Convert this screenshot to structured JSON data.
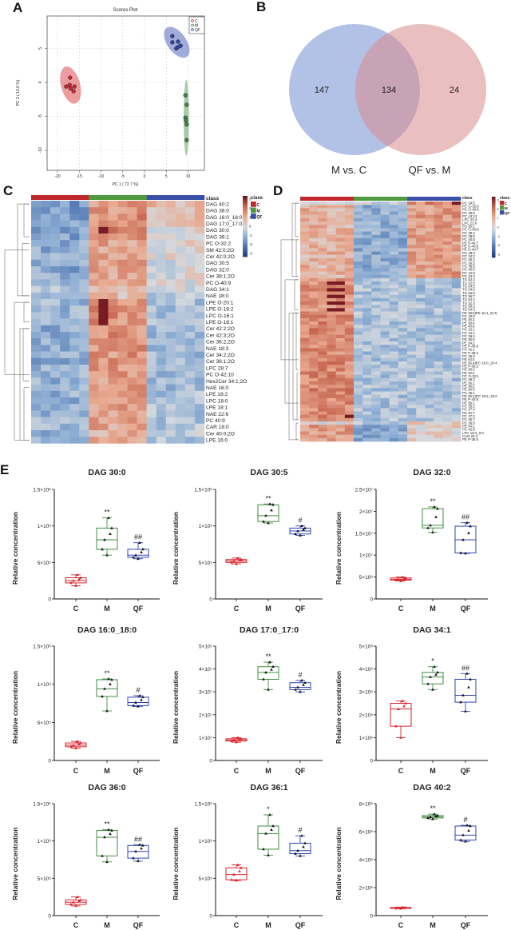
{
  "panel_letters": {
    "a": "A",
    "b": "B",
    "c": "C",
    "d": "D",
    "e": "E"
  },
  "colors": {
    "C": "#d8242c",
    "M": "#3f8f3f",
    "QF": "#2f45b5",
    "class_C": "#c1272d",
    "class_M": "#4e9a3c",
    "class_QF": "#3a4fa8"
  },
  "chart_data": [
    {
      "id": "A",
      "type": "scatter",
      "title": "Scores Plot",
      "xlabel": "PC 1 ( 72.7 %)",
      "ylabel": "PC 2 ( 10.6 %)",
      "xlim": [
        -22.5,
        13.5
      ],
      "ylim": [
        -13,
        9.7
      ],
      "xticks": [
        -20,
        -15,
        -10,
        -5,
        0,
        5,
        10
      ],
      "yticks": [
        5,
        0,
        -5,
        -10
      ],
      "grid": true,
      "legend": {
        "position": "top-right",
        "entries": [
          "C",
          "M",
          "QF"
        ]
      },
      "series": [
        {
          "name": "C",
          "points": [
            [
              -17.1,
              0.7
            ],
            [
              -18,
              -0.6
            ],
            [
              -17.2,
              -0.4
            ],
            [
              -16.1,
              -0.6
            ],
            [
              -17,
              -0.9
            ],
            [
              -16.3,
              -1.3
            ]
          ],
          "ellipse": {
            "cx": -17,
            "cy": -0.4,
            "rx": 2.2,
            "ry": 2.8,
            "angle": -15
          }
        },
        {
          "name": "M",
          "points": [
            [
              9.4,
              -1.9
            ],
            [
              9.7,
              -3.3
            ],
            [
              9.4,
              -5.2
            ],
            [
              9.5,
              -5.6
            ],
            [
              9.7,
              -6.2
            ],
            [
              9.7,
              -8.5
            ]
          ],
          "ellipse": {
            "cx": 9.6,
            "cy": -5.2,
            "rx": 0.6,
            "ry": 5.6,
            "angle": 0
          }
        },
        {
          "name": "QF",
          "points": [
            [
              6.4,
              6.8
            ],
            [
              6.4,
              5.9
            ],
            [
              7.7,
              6.0
            ],
            [
              8.3,
              5.4
            ],
            [
              7.3,
              5.0
            ],
            [
              7.7,
              5.2
            ]
          ],
          "ellipse": {
            "cx": 7.4,
            "cy": 5.9,
            "rx": 2.2,
            "ry": 2.6,
            "angle": -35
          }
        }
      ]
    },
    {
      "id": "B",
      "type": "venn",
      "sets": [
        "M vs. C",
        "QF vs. M"
      ],
      "only_left": 147,
      "intersection": 134,
      "only_right": 24
    },
    {
      "id": "C",
      "type": "heatmap",
      "class_label": "class",
      "groups": [
        "C",
        "M",
        "QF"
      ],
      "samples_per_group": 6,
      "scale": [
        -3,
        3
      ],
      "scale_ticks": [
        3,
        2,
        1,
        0,
        -1,
        -2,
        -3
      ],
      "rows": [
        "DAG 40:2",
        "DAG 36:0",
        "DAG 16:0_18:0",
        "DAG 17:0_17:0",
        "DAG 30:0",
        "DAG 36:1",
        "PC O-32:2",
        "SM 42:0;2O",
        "Cer 42:0;2O",
        "DAG 30:5",
        "DAG 32:0",
        "Cer 38:1;2O",
        "PC O-40:9",
        "DAG 34:1",
        "NAE 18:0",
        "LPE O-20:1",
        "LPE O-18:2",
        "LPC O-16:1",
        "LPE O-18:1",
        "Cer 42:2;2O",
        "Cer 42:3;2O",
        "Cer 36:2;2O",
        "NAE 18:3",
        "Cer 34:2;2O",
        "Cer 36:1;2O",
        "LPC 28:7",
        "PC O-42:10",
        "Hex2Cer 34:1;2O",
        "NAE 16:0",
        "LPE 18:2",
        "LPC 18:0",
        "LPE 18:1",
        "NAE 22:6",
        "PC 40:9",
        "CAR 18:0",
        "Cer 40:0;2O",
        "LPE 16:0"
      ],
      "row_group_levels": [
        [
          -1.3,
          1.3,
          0.6
        ],
        [
          -1.3,
          1.3,
          0.5
        ],
        [
          -1.3,
          1.4,
          0.5
        ],
        [
          -1.3,
          1.3,
          0.6
        ],
        [
          -1.2,
          1.6,
          0.2
        ],
        [
          -1.1,
          1.2,
          0.3
        ],
        [
          -1,
          1.1,
          0.2
        ],
        [
          -1,
          1,
          0.1
        ],
        [
          -0.9,
          1,
          0.1
        ],
        [
          -1,
          1.2,
          0
        ],
        [
          -1.1,
          1.1,
          0
        ],
        [
          -0.9,
          0.9,
          0
        ],
        [
          -0.8,
          0.9,
          -0.1
        ],
        [
          -0.6,
          0.6,
          0
        ],
        [
          -0.7,
          0.6,
          -0.4
        ],
        [
          -0.8,
          1.3,
          -0.6
        ],
        [
          -0.8,
          1.4,
          -0.6
        ],
        [
          -0.8,
          1.4,
          -0.6
        ],
        [
          -0.8,
          1.4,
          -0.6
        ],
        [
          -1,
          1.4,
          -0.7
        ],
        [
          -1,
          1.4,
          -0.7
        ],
        [
          -1,
          1.4,
          -0.7
        ],
        [
          -1,
          1.3,
          -0.7
        ],
        [
          -1,
          1.3,
          -0.7
        ],
        [
          -1,
          1.3,
          -0.7
        ],
        [
          -0.9,
          1.3,
          -0.7
        ],
        [
          -0.9,
          1.2,
          -0.7
        ],
        [
          -0.9,
          1.2,
          -0.7
        ],
        [
          -0.9,
          1.2,
          -0.7
        ],
        [
          -0.9,
          1.1,
          -0.6
        ],
        [
          -0.9,
          1.1,
          -0.6
        ],
        [
          -0.9,
          1.1,
          -0.6
        ],
        [
          -0.9,
          1.1,
          -0.6
        ],
        [
          -0.8,
          1,
          -0.5
        ],
        [
          -0.8,
          1,
          -0.5
        ],
        [
          -1.1,
          0.8,
          -0.3
        ],
        [
          -0.8,
          0.9,
          -0.6
        ]
      ]
    },
    {
      "id": "D",
      "type": "heatmap",
      "class_label": "class",
      "groups": [
        "C",
        "M",
        "QF"
      ],
      "samples_per_group": 6,
      "scale": [
        -3,
        3
      ],
      "scale_ticks": [
        3,
        2,
        1,
        0,
        -1,
        -2,
        -3
      ],
      "rows": [
        "PC 34:5",
        "PC O-32:6",
        "PC O-40:6",
        "PC 36:6",
        "PC 44:12",
        "LPC 20:4",
        "LPC 22:6",
        "PS 36:1",
        "PC O-40:8",
        "PC 38:4",
        "PC 38:6",
        "PC 40:8",
        "PE P-40:7",
        "PE O-40:5",
        "PE O-40:7",
        "PC 38:3",
        "PC 34:2",
        "PC 36:2",
        "PC 36:5",
        "PC 38:5",
        "PC 40:6",
        "PC 42:6",
        "PC 34:3",
        "TG 52:4",
        "TG 52:5",
        "TG 54:5",
        "TG 54:6",
        "TG 56:6",
        "TG 56:7",
        "TG 54:4",
        "TG 52:3",
        "TG 50:3",
        "TG 54:3",
        "PE 38:6|PE 16:1_22:6",
        "PC 40:5",
        "PE 36:2",
        "PE 38:4",
        "PE 40:6",
        "PC 32:1",
        "PC 34:1",
        "PC 36:4",
        "PE 38:5",
        "PE 34:2",
        "PE P-40:6",
        "PC 42:1",
        "PE P-38:2",
        "PC 36:3",
        "PE 40:5",
        "PE 36:4|PC 16:0_20:4",
        "PE P-36:2",
        "PE 38:3",
        "PE 40:4",
        "PC O-32:1",
        "PC 38:2",
        "PE 36:1",
        "PE 38:2",
        "PE 36:3",
        "PC 36:1",
        "PE 36:4|PC 18:2_18:2",
        "PE P-40:8",
        "PE 38:1",
        "PC 35:2",
        "PC 37:4",
        "PE 40:7",
        "PC 37:2",
        "PC 40:7",
        "PC 36:0",
        "PE 34:1",
        "PC 42:8",
        "LPC 18:2_0:0",
        "CAR 20:4",
        "PE P-38:5"
      ],
      "row_group_levels": "see script defaults: rows 0 [-0.3,-0.3,1.5]; 1-22 [0.8,-1,1.2]; 23-32 [1.3,-0.6,-0.6]; 33-65 [1.5,-0.6,-0.6]; 66 [0,-0.3,0.3]; 67-71 [1.2,-1,0.3]"
    },
    {
      "id": "E",
      "type": "box",
      "categories": [
        "C",
        "M",
        "QF"
      ],
      "ylabel": "Relative concentration",
      "summary_order": [
        "min",
        "q1",
        "median",
        "q3",
        "max"
      ],
      "panels": [
        {
          "title": "DAG 30:0",
          "ymax": 1500000,
          "ticks": [
            0,
            500000,
            1000000,
            1500000
          ],
          "tick_labels": [
            "0",
            "5×10⁵",
            "1×10⁶",
            "1.5×10⁶"
          ],
          "boxes": [
            [
              180000,
              220000,
              250000,
              290000,
              330000
            ],
            [
              600000,
              680000,
              810000,
              970000,
              1110000
            ],
            [
              550000,
              570000,
              600000,
              680000,
              770000
            ]
          ],
          "sig": [
            "",
            "**",
            "##"
          ]
        },
        {
          "title": "DAG 30:5",
          "ymax": 1500000,
          "ticks": [
            0,
            500000,
            1000000,
            1500000
          ],
          "tick_labels": [
            "0",
            "5×10⁵",
            "1×10⁶",
            "1.5×10⁶"
          ],
          "boxes": [
            [
              480000,
              500000,
              520000,
              540000,
              560000
            ],
            [
              1040000,
              1060000,
              1140000,
              1290000,
              1300000
            ],
            [
              870000,
              890000,
              930000,
              970000,
              1000000
            ]
          ],
          "sig": [
            "",
            "**",
            "#"
          ]
        },
        {
          "title": "DAG 32:0",
          "ymax": 25000000,
          "ticks": [
            0,
            5000000,
            10000000,
            15000000,
            20000000,
            25000000
          ],
          "tick_labels": [
            "0",
            "5×10⁶",
            "1×10⁷",
            "1.5×10⁷",
            "2×10⁷",
            "2.5×10⁷"
          ],
          "boxes": [
            [
              4100000,
              4300000,
              4500000,
              4800000,
              5000000
            ],
            [
              15200000,
              16200000,
              16800000,
              20600000,
              21000000
            ],
            [
              10400000,
              10500000,
              13500000,
              16600000,
              17400000
            ]
          ],
          "sig": [
            "",
            "**",
            "##"
          ]
        },
        {
          "title": "DAG 16:0_18:0",
          "ymax": 1500000,
          "ticks": [
            0,
            500000,
            1000000,
            1500000
          ],
          "tick_labels": [
            "0",
            "5×10⁵",
            "1×10⁶",
            "1.5×10⁶"
          ],
          "boxes": [
            [
              160000,
              180000,
              200000,
              230000,
              250000
            ],
            [
              650000,
              840000,
              940000,
              1060000,
              1070000
            ],
            [
              710000,
              720000,
              760000,
              830000,
              850000
            ]
          ],
          "sig": [
            "",
            "**",
            "#"
          ]
        },
        {
          "title": "DAG 17:0_17:0",
          "ymax": 50000000,
          "ticks": [
            0,
            10000000,
            20000000,
            30000000,
            40000000,
            50000000
          ],
          "tick_labels": [
            "0",
            "1×10⁷",
            "2×10⁷",
            "3×10⁷",
            "4×10⁷",
            "5×10⁷"
          ],
          "boxes": [
            [
              8000000,
              8500000,
              9000000,
              9500000,
              10000000
            ],
            [
              31000000,
              35500000,
              38500000,
              41000000,
              43000000
            ],
            [
              30000000,
              31000000,
              32000000,
              34000000,
              35000000
            ]
          ],
          "sig": [
            "",
            "**",
            "#"
          ]
        },
        {
          "title": "DAG 34:1",
          "ymax": 5000000,
          "ticks": [
            0,
            1000000,
            2000000,
            3000000,
            4000000,
            5000000
          ],
          "tick_labels": [
            "0",
            "1×10⁶",
            "2×10⁶",
            "3×10⁶",
            "4×10⁶",
            "5×10⁶"
          ],
          "boxes": [
            [
              1000000,
              1500000,
              2250000,
              2500000,
              2600000
            ],
            [
              3100000,
              3350000,
              3650000,
              3850000,
              4100000
            ],
            [
              2150000,
              2550000,
              2850000,
              3550000,
              3800000
            ]
          ],
          "sig": [
            "",
            "*",
            "##"
          ]
        },
        {
          "title": "DAG 36:0",
          "ymax": 1500000,
          "ticks": [
            0,
            500000,
            1000000,
            1500000
          ],
          "tick_labels": [
            "0",
            "5×10⁵",
            "1×10⁶",
            "1.5×10⁶"
          ],
          "boxes": [
            [
              130000,
              150000,
              180000,
              210000,
              250000
            ],
            [
              720000,
              800000,
              1050000,
              1140000,
              1150000
            ],
            [
              730000,
              770000,
              860000,
              940000,
              950000
            ]
          ],
          "sig": [
            "",
            "**",
            "##"
          ]
        },
        {
          "title": "DAG 36:1",
          "ymax": 1500000,
          "ticks": [
            0,
            500000,
            1000000,
            1500000
          ],
          "tick_labels": [
            "0",
            "5×10⁵",
            "1×10⁶",
            "1.5×10⁶"
          ],
          "boxes": [
            [
              470000,
              480000,
              550000,
              640000,
              680000
            ],
            [
              810000,
              890000,
              1100000,
              1200000,
              1350000
            ],
            [
              800000,
              830000,
              870000,
              970000,
              1070000
            ]
          ],
          "sig": [
            "",
            "*",
            "#"
          ]
        },
        {
          "title": "DAG 40:2",
          "ymax": 8000000,
          "ticks": [
            0,
            2000000,
            4000000,
            6000000,
            8000000
          ],
          "tick_labels": [
            "0",
            "2×10⁶",
            "4×10⁶",
            "6×10⁶",
            "8×10⁶"
          ],
          "boxes": [
            [
              500000,
              520000,
              550000,
              580000,
              600000
            ],
            [
              6900000,
              6980000,
              7050000,
              7150000,
              7250000
            ],
            [
              5300000,
              5400000,
              5750000,
              6400000,
              6450000
            ]
          ],
          "sig": [
            "",
            "**",
            "#"
          ]
        }
      ]
    }
  ]
}
